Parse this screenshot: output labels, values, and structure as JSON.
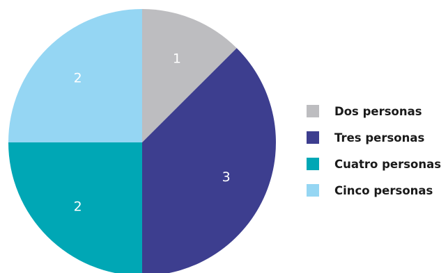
{
  "chart_data": {
    "type": "pie",
    "categories": [
      "Dos personas",
      "Tres personas",
      "Cuatro personas",
      "Cinco personas"
    ],
    "values": [
      1,
      3,
      2,
      2
    ],
    "data_labels": [
      "1",
      "3",
      "2",
      "2"
    ],
    "colors": [
      "#bdbdc0",
      "#3d3e8f",
      "#00a7b5",
      "#95d6f3"
    ],
    "legend": [
      "Dos personas",
      "Tres personas",
      "Cuatro personas",
      "Cinco personas"
    ],
    "legend_position": "right"
  }
}
